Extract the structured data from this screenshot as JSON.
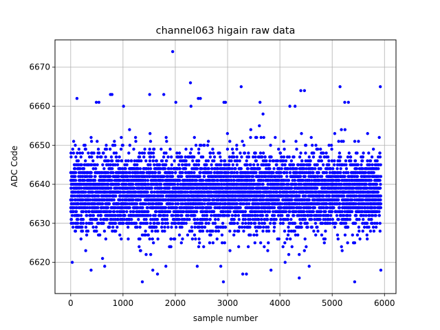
{
  "chart_data": {
    "type": "scatter",
    "title": "channel063 higain raw data",
    "xlabel": "sample number",
    "ylabel": "ADC Code",
    "xlim": [
      -300,
      6220
    ],
    "ylim": [
      6612,
      6677
    ],
    "xticks": [
      0,
      1000,
      2000,
      3000,
      4000,
      5000,
      6000
    ],
    "yticks": [
      6620,
      6630,
      6640,
      6650,
      6660,
      6670
    ],
    "grid": true,
    "legend": "none",
    "series": [
      {
        "color": "#0000ff",
        "n_samples": 5930,
        "distribution": {
          "x_range": [
            0,
            5930
          ],
          "center": 6638,
          "spread": 5,
          "min": 6615,
          "max": 6674
        },
        "notable_points": [
          [
            1950,
            6674
          ],
          [
            2290,
            6666
          ],
          [
            3260,
            6665
          ],
          [
            5150,
            6665
          ],
          [
            5920,
            6665
          ],
          [
            4400,
            6664
          ],
          [
            4470,
            6664
          ],
          [
            760,
            6663
          ],
          [
            790,
            6663
          ],
          [
            1510,
            6663
          ],
          [
            1780,
            6663
          ],
          [
            120,
            6662
          ],
          [
            2440,
            6662
          ],
          [
            2480,
            6662
          ],
          [
            490,
            6661
          ],
          [
            540,
            6661
          ],
          [
            2010,
            6661
          ],
          [
            2930,
            6661
          ],
          [
            2960,
            6661
          ],
          [
            3620,
            6661
          ],
          [
            5240,
            6661
          ],
          [
            5310,
            6661
          ],
          [
            4190,
            6660
          ],
          [
            4290,
            6660
          ],
          [
            1010,
            6660
          ],
          [
            2300,
            6660
          ],
          [
            1370,
            6615
          ],
          [
            2920,
            6615
          ],
          [
            5430,
            6615
          ],
          [
            3290,
            6617
          ],
          [
            3360,
            6617
          ],
          [
            1660,
            6617
          ],
          [
            4370,
            6616
          ],
          [
            390,
            6618
          ],
          [
            1570,
            6618
          ],
          [
            1820,
            6619
          ],
          [
            2420,
            6619
          ],
          [
            3830,
            6618
          ],
          [
            5930,
            6618
          ],
          [
            30,
            6620
          ],
          [
            650,
            6619
          ],
          [
            4100,
            6620
          ],
          [
            4560,
            6619
          ],
          [
            2870,
            6619
          ]
        ]
      }
    ]
  }
}
